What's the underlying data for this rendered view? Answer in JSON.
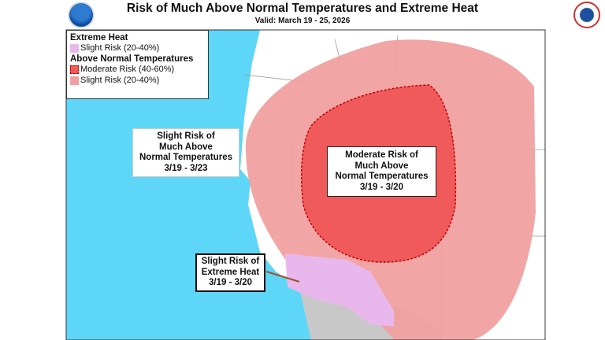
{
  "header": {
    "title": "Risk of Much Above Normal Temperatures and Extreme Heat",
    "subtitle": "Valid: March 19 - 25, 2026",
    "left_logo": "NOAA",
    "right_logo": "National Weather Service"
  },
  "legend": {
    "extreme_heat_title": "Extreme Heat",
    "extreme_heat_slight": "Slight Risk (20-40%)",
    "above_normal_title": "Above Normal Temperatures",
    "above_normal_moderate": "Moderate Risk (40-60%)",
    "above_normal_slight": "Slight Risk (20-40%)"
  },
  "callouts": {
    "slight": [
      "Slight Risk of",
      "Much Above",
      "Normal Temperatures",
      "3/19 - 3/23"
    ],
    "moderate": [
      "Moderate Risk of",
      "Much Above",
      "Normal Temperatures",
      "3/19 - 3/20"
    ],
    "heat": [
      "Slight Risk of",
      "Extreme Heat",
      "3/19 - 3/20"
    ]
  },
  "colors": {
    "ocean": "#5dd6f7",
    "land": "#ffffff",
    "mexico": "#c8c8c8",
    "slight_temp": "#f0a0a0",
    "moderate_temp": "#f05a5a",
    "moderate_border": "#c00000",
    "extreme_heat": "#e8b8ec"
  }
}
